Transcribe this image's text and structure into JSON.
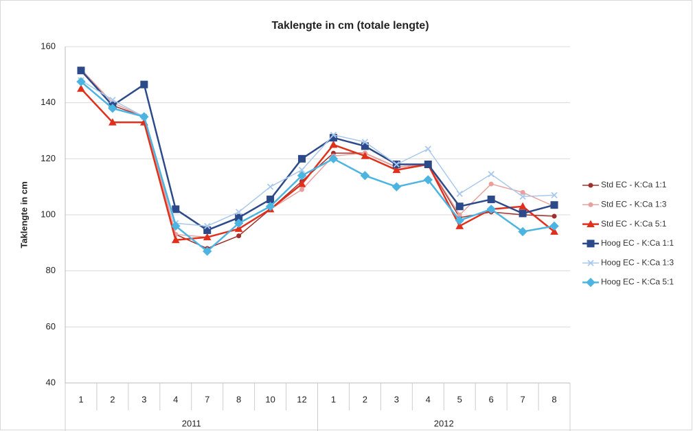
{
  "chart_data": {
    "type": "line",
    "title": "Taklengte in cm (totale lengte)",
    "y_label": "Taklengte in cm",
    "category_groups": [
      {
        "label": "2011",
        "categories": [
          "1",
          "2",
          "3",
          "4",
          "7",
          "8",
          "10",
          "12"
        ]
      },
      {
        "label": "2012",
        "categories": [
          "1",
          "2",
          "3",
          "4",
          "5",
          "6",
          "7",
          "8"
        ]
      }
    ],
    "ylim": [
      40,
      160
    ],
    "yticks": [
      40,
      60,
      80,
      100,
      120,
      140,
      160
    ],
    "grid": true,
    "legend": "right",
    "series": [
      {
        "name": "Std EC - K:Ca 1:1",
        "color": "#a0302c",
        "marker": "circle",
        "width": 1.5,
        "values": [
          152,
          139,
          135,
          93,
          88,
          92.5,
          102,
          112,
          122,
          122,
          117,
          118,
          99,
          101,
          100,
          99.5
        ]
      },
      {
        "name": "Std EC - K:Ca 1:3",
        "color": "#e8a09c",
        "marker": "circle",
        "width": 1.5,
        "values": [
          152,
          140,
          135,
          93,
          92,
          95,
          102,
          109,
          121,
          122,
          117,
          118,
          100,
          111,
          108,
          103
        ]
      },
      {
        "name": "Std EC - K:Ca 5:1",
        "color": "#e0301c",
        "marker": "triangle",
        "width": 2.5,
        "values": [
          145,
          133,
          133,
          91,
          92,
          95,
          102,
          111,
          125,
          121,
          116,
          118,
          96,
          102,
          103,
          94
        ]
      },
      {
        "name": "Hoog EC - K:Ca 1:1",
        "color": "#2c4a8a",
        "marker": "square",
        "width": 2.5,
        "values": [
          151.5,
          139,
          146.5,
          102,
          94.5,
          99,
          105.5,
          120,
          127.5,
          124.5,
          118,
          118,
          103,
          105.5,
          100.5,
          103.5
        ]
      },
      {
        "name": "Hoog EC - K:Ca 1:3",
        "color": "#a8c8ec",
        "marker": "x",
        "width": 1.5,
        "values": [
          148,
          141,
          135,
          97,
          96,
          101,
          110,
          116,
          128.5,
          126,
          118,
          123.5,
          107.5,
          114.5,
          106.5,
          107
        ]
      },
      {
        "name": "Hoog EC - K:Ca 5:1",
        "color": "#4cb4e0",
        "marker": "diamond",
        "width": 2.5,
        "values": [
          147.5,
          138,
          135,
          96,
          87,
          97,
          103,
          114,
          120,
          114,
          110,
          112.5,
          98,
          102,
          94,
          96
        ]
      }
    ]
  }
}
